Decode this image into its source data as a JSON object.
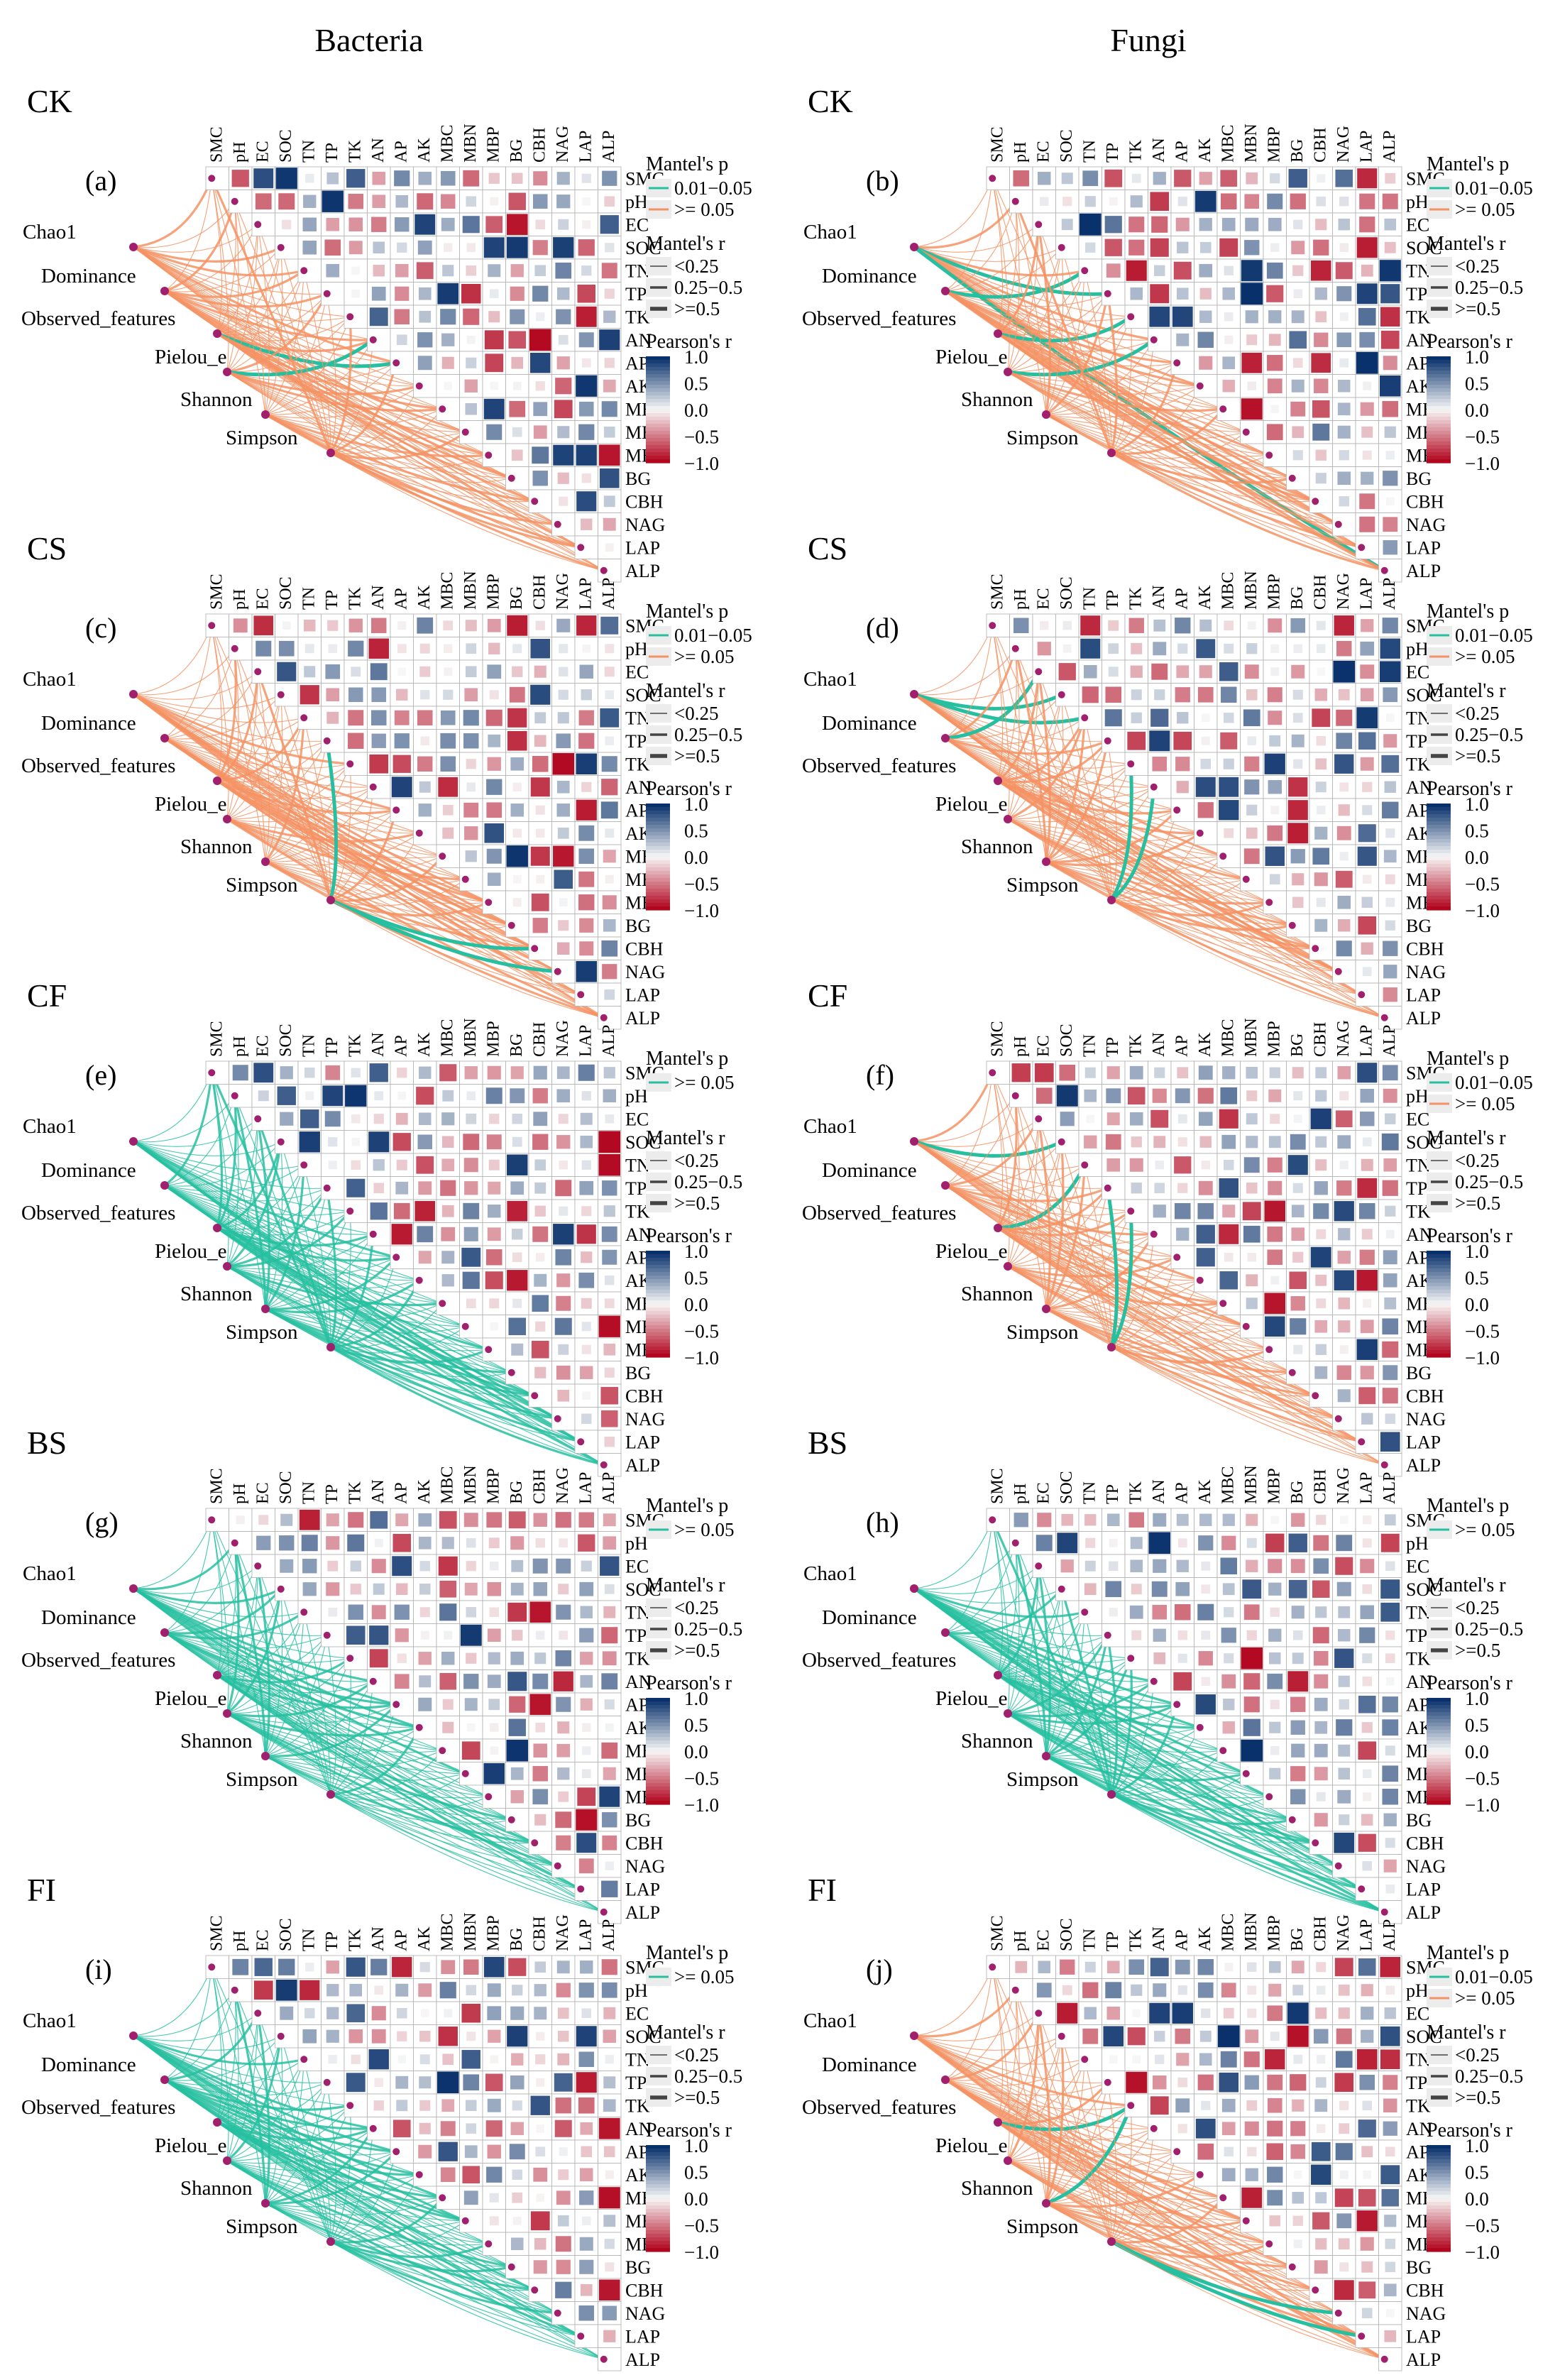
{
  "column_titles": [
    "Bacteria",
    "Fungi"
  ],
  "variables": [
    "SMC",
    "pH",
    "EC",
    "SOC",
    "TN",
    "TP",
    "TK",
    "AN",
    "AP",
    "AK",
    "MBC",
    "MBN",
    "MBP",
    "BG",
    "CBH",
    "NAG",
    "LAP",
    "ALP"
  ],
  "diversity_indices": [
    "Chao1",
    "Dominance",
    "Observed_features",
    "Pielou_e",
    "Shannon",
    "Simpson"
  ],
  "legend": {
    "mantel_p_title": "Mantel's p",
    "mantel_r_title": "Mantel's r",
    "pearson_title": "Pearson's r",
    "p_levels": [
      "0.01−0.05",
      ">= 0.05"
    ],
    "r_levels": [
      "<0.25",
      "0.25−0.5",
      ">=0.5"
    ],
    "colorbar_ticks": [
      "1.0",
      "0.5",
      "0.0",
      "−0.5",
      "−1.0"
    ]
  },
  "colors": {
    "p_0.01_0.05": "#26bfa0",
    "p_ge_0.05": "#f59263",
    "corr_positive": "#08306b",
    "corr_mid": "#f7f7f7",
    "corr_negative": "#b2061f"
  },
  "chart_data": [
    {
      "type": "heatmap",
      "panel": "(a)",
      "treatment": "CK",
      "column": "Bacteria",
      "mantel_p_legend": [
        "0.01−0.05",
        ">= 0.05"
      ],
      "links": {
        "significant": [
          [
            "Observed_features",
            "AP"
          ],
          [
            "Pielou_e",
            "AN"
          ]
        ],
        "nonsignificant_color": "#f59263"
      }
    },
    {
      "type": "heatmap",
      "panel": "(b)",
      "treatment": "CK",
      "column": "Fungi",
      "mantel_p_legend": [
        "0.01−0.05",
        ">= 0.05"
      ],
      "links": {
        "significant": [
          [
            "Chao1",
            "TP"
          ],
          [
            "Chao1",
            "ALP"
          ],
          [
            "Dominance",
            "TN"
          ],
          [
            "Observed_features",
            "TK"
          ],
          [
            "Pielou_e",
            "AN"
          ]
        ],
        "nonsignificant_color": "#f59263"
      }
    },
    {
      "type": "heatmap",
      "panel": "(c)",
      "treatment": "CS",
      "column": "Bacteria",
      "mantel_p_legend": [
        "0.01−0.05",
        ">= 0.05"
      ],
      "links": {
        "significant": [
          [
            "Simpson",
            "TP"
          ],
          [
            "Simpson",
            "CBH"
          ],
          [
            "Simpson",
            "NAG"
          ]
        ],
        "nonsignificant_color": "#f59263"
      }
    },
    {
      "type": "heatmap",
      "panel": "(d)",
      "treatment": "CS",
      "column": "Fungi",
      "mantel_p_legend": [
        "0.01−0.05",
        ">= 0.05"
      ],
      "links": {
        "significant": [
          [
            "Chao1",
            "SOC"
          ],
          [
            "Chao1",
            "TN"
          ],
          [
            "Simpson",
            "TK"
          ],
          [
            "Simpson",
            "AN"
          ],
          [
            "Dominance",
            "EC"
          ]
        ],
        "nonsignificant_color": "#f59263"
      }
    },
    {
      "type": "heatmap",
      "panel": "(e)",
      "treatment": "CF",
      "column": "Bacteria",
      "mantel_p_legend": [
        ">= 0.05"
      ],
      "links": {
        "significant": [],
        "nonsignificant_color": "#26bfa0"
      }
    },
    {
      "type": "heatmap",
      "panel": "(f)",
      "treatment": "CF",
      "column": "Fungi",
      "mantel_p_legend": [
        "0.01−0.05",
        ">= 0.05"
      ],
      "links": {
        "significant": [
          [
            "Chao1",
            "SOC"
          ],
          [
            "Observed_features",
            "TN"
          ],
          [
            "Simpson",
            "TP"
          ],
          [
            "Simpson",
            "TK"
          ]
        ],
        "nonsignificant_color": "#f59263"
      }
    },
    {
      "type": "heatmap",
      "panel": "(g)",
      "treatment": "BS",
      "column": "Bacteria",
      "mantel_p_legend": [
        ">= 0.05"
      ],
      "links": {
        "significant": [],
        "nonsignificant_color": "#26bfa0"
      }
    },
    {
      "type": "heatmap",
      "panel": "(h)",
      "treatment": "BS",
      "column": "Fungi",
      "mantel_p_legend": [
        ">= 0.05"
      ],
      "links": {
        "significant": [],
        "nonsignificant_color": "#26bfa0"
      }
    },
    {
      "type": "heatmap",
      "panel": "(i)",
      "treatment": "FI",
      "column": "Bacteria",
      "mantel_p_legend": [
        ">= 0.05"
      ],
      "links": {
        "significant": [],
        "nonsignificant_color": "#26bfa0"
      }
    },
    {
      "type": "heatmap",
      "panel": "(j)",
      "treatment": "FI",
      "column": "Fungi",
      "mantel_p_legend": [
        "0.01−0.05",
        ">= 0.05"
      ],
      "links": {
        "significant": [
          [
            "Observed_features",
            "TK"
          ],
          [
            "Shannon",
            "TK"
          ],
          [
            "Simpson",
            "NAG"
          ],
          [
            "Simpson",
            "LAP"
          ]
        ],
        "nonsignificant_color": "#f59263"
      }
    }
  ]
}
